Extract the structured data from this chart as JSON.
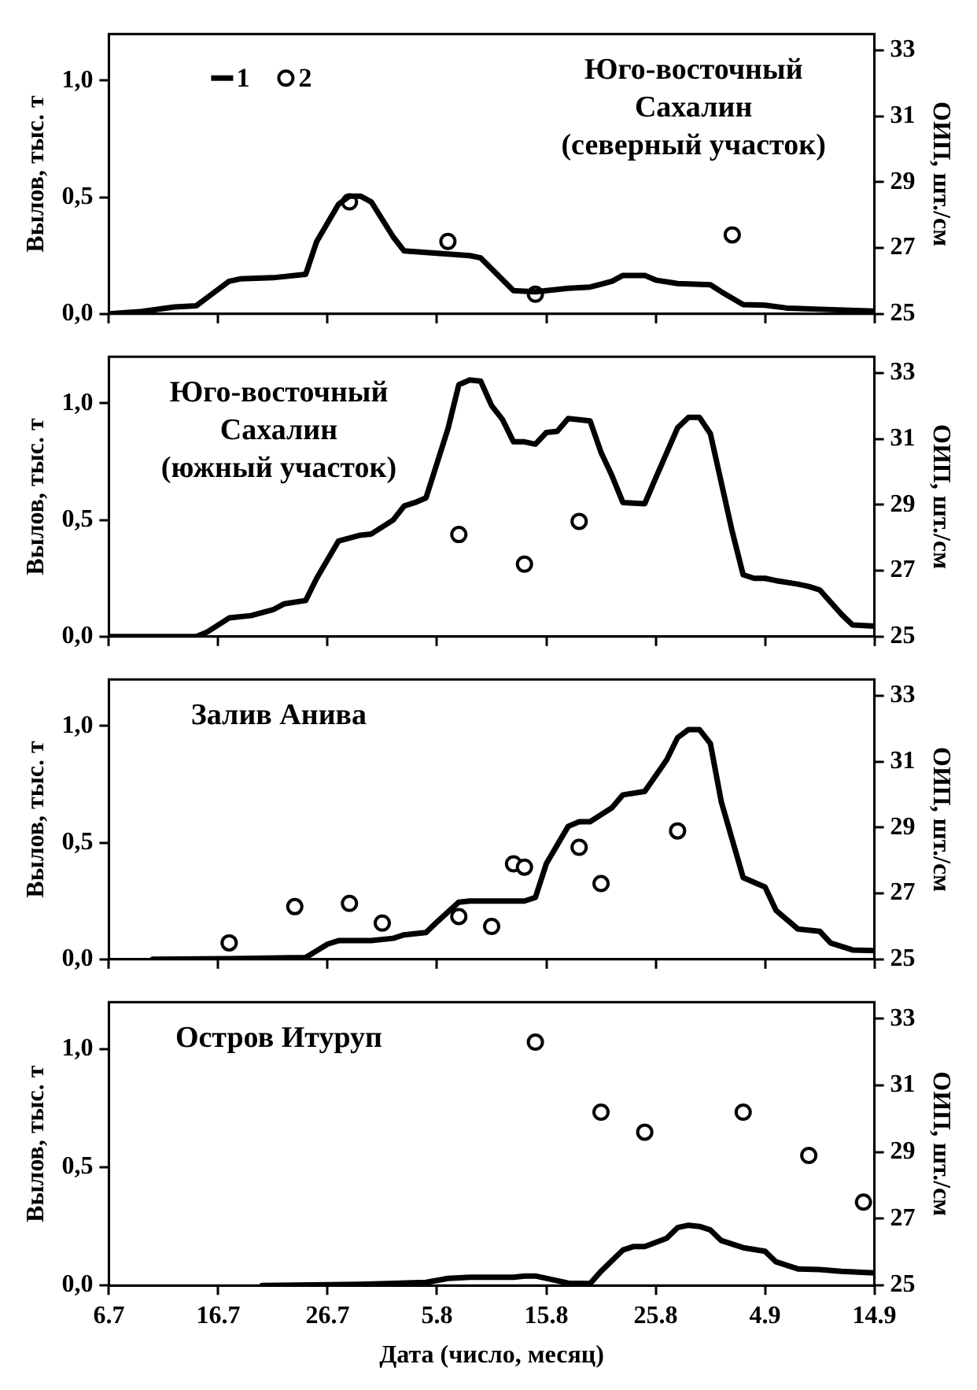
{
  "chart_data": [
    {
      "type": "line",
      "annotations": [
        "Юго-восточный Сахалин (северный участок)"
      ],
      "ylabel": "Вылов, тыс. т",
      "y2label": "ОИП, шт./см",
      "legend": "top left",
      "tick_labels": "y",
      "xlim": [
        "--07-06",
        "--09-14"
      ],
      "xticks": [
        {
          "value": "--07-06",
          "label": "6.7"
        },
        {
          "value": "--07-16",
          "label": "16.7"
        },
        {
          "value": "--07-26",
          "label": "26.7"
        },
        {
          "value": "--08-05",
          "label": "5.8"
        },
        {
          "value": "--08-15",
          "label": "15.8"
        },
        {
          "value": "--08-25",
          "label": "25.8"
        },
        {
          "value": "--09-04",
          "label": "4.9"
        },
        {
          "value": "--09-14",
          "label": "14.9"
        }
      ],
      "ylim": [
        0,
        1.2
      ],
      "yticks": [
        {
          "value": 0,
          "label": "0,0"
        },
        {
          "value": 0.5,
          "label": "0,5"
        },
        {
          "value": 1,
          "label": "1,0"
        }
      ],
      "y2lim": [
        25,
        33.5
      ],
      "y2ticks": [
        25,
        27,
        29,
        31,
        33
      ],
      "series": [
        {
          "name": "1",
          "color": "#000000",
          "line_style": "solid",
          "marker": "none",
          "x": [
            "--07-06",
            "--07-09",
            "--07-12",
            "--07-14",
            "--07-15",
            "--07-17",
            "--07-18",
            "--07-21",
            "--07-24",
            "--07-25",
            "--07-27",
            "--07-28",
            "--07-29",
            "--07-30",
            "--08-01",
            "--08-02",
            "--08-05",
            "--08-08",
            "--08-09",
            "--08-12",
            "--08-14",
            "--08-17",
            "--08-19",
            "--08-21",
            "--08-22",
            "--08-24",
            "--08-25",
            "--08-27",
            "--08-30",
            "--08-31",
            "--09-02",
            "--09-04",
            "--09-06",
            "--09-09",
            "--09-14"
          ],
          "values": [
            0,
            0.01,
            0.03,
            0.035,
            0.07,
            0.14,
            0.15,
            0.155,
            0.17,
            0.31,
            0.47,
            0.505,
            0.505,
            0.48,
            0.33,
            0.27,
            0.26,
            0.25,
            0.24,
            0.1,
            0.095,
            0.11,
            0.115,
            0.14,
            0.165,
            0.165,
            0.145,
            0.13,
            0.125,
            0.095,
            0.04,
            0.037,
            0.025,
            0.02,
            0.012
          ]
        },
        {
          "name": "2",
          "type": "scatter",
          "axis": "y2",
          "color": "#000000",
          "marker": "circle",
          "x": [
            "--07-28",
            "--08-06",
            "--08-14",
            "--09-01"
          ],
          "values": [
            28.4,
            27.2,
            25.6,
            27.4
          ]
        }
      ]
    },
    {
      "type": "line",
      "annotations": [
        "Юго-восточный Сахалин (южный участок)"
      ],
      "ylabel": "Вылов, тыс. т",
      "y2label": "ОИП, шт./см",
      "tick_labels": "y",
      "xlim": [
        "--07-06",
        "--09-14"
      ],
      "xticks": [
        {
          "value": "--07-06",
          "label": "6.7"
        },
        {
          "value": "--07-16",
          "label": "16.7"
        },
        {
          "value": "--07-26",
          "label": "26.7"
        },
        {
          "value": "--08-05",
          "label": "5.8"
        },
        {
          "value": "--08-15",
          "label": "15.8"
        },
        {
          "value": "--08-25",
          "label": "25.8"
        },
        {
          "value": "--09-04",
          "label": "4.9"
        },
        {
          "value": "--09-14",
          "label": "14.9"
        }
      ],
      "ylim": [
        0,
        1.2
      ],
      "yticks": [
        {
          "value": 0,
          "label": "0,0"
        },
        {
          "value": 0.5,
          "label": "0,5"
        },
        {
          "value": 1,
          "label": "1,0"
        }
      ],
      "y2lim": [
        25,
        33.5
      ],
      "y2ticks": [
        25,
        27,
        29,
        31,
        33
      ],
      "series": [
        {
          "color": "#000000",
          "line_style": "solid",
          "marker": "none",
          "x": [
            "--07-06",
            "--07-14",
            "--07-15",
            "--07-17",
            "--07-19",
            "--07-21",
            "--07-22",
            "--07-24",
            "--07-25",
            "--07-27",
            "--07-29",
            "--07-30",
            "--08-01",
            "--08-02",
            "--08-03",
            "--08-04",
            "--08-06",
            "--08-07",
            "--08-08",
            "--08-09",
            "--08-10",
            "--08-11",
            "--08-12",
            "--08-13",
            "--08-14",
            "--08-15",
            "--08-16",
            "--08-17",
            "--08-19",
            "--08-20",
            "--08-21",
            "--08-22",
            "--08-24",
            "--08-25",
            "--08-27",
            "--08-28",
            "--08-29",
            "--08-30",
            "--09-01",
            "--09-02",
            "--09-03",
            "--09-04",
            "--09-05",
            "--09-07",
            "--09-08",
            "--09-09",
            "--09-11",
            "--09-12",
            "--09-14"
          ],
          "values": [
            0,
            0,
            0.02,
            0.08,
            0.09,
            0.115,
            0.14,
            0.155,
            0.25,
            0.41,
            0.435,
            0.44,
            0.5,
            0.56,
            0.575,
            0.595,
            0.89,
            1.08,
            1.1,
            1.095,
            0.99,
            0.93,
            0.835,
            0.835,
            0.825,
            0.875,
            0.88,
            0.935,
            0.925,
            0.79,
            0.69,
            0.575,
            0.57,
            0.68,
            0.895,
            0.94,
            0.94,
            0.87,
            0.45,
            0.265,
            0.25,
            0.25,
            0.24,
            0.225,
            0.215,
            0.2,
            0.095,
            0.05,
            0.045
          ]
        },
        {
          "type": "scatter",
          "axis": "y2",
          "color": "#000000",
          "marker": "circle",
          "x": [
            "--08-07",
            "--08-13",
            "--08-18"
          ],
          "values": [
            28.1,
            27.2,
            28.5
          ]
        }
      ]
    },
    {
      "type": "line",
      "annotations": [
        "Залив Анива"
      ],
      "ylabel": "Вылов, тыс. т",
      "y2label": "ОИП, шт./см",
      "tick_labels": "y",
      "xlim": [
        "--07-06",
        "--09-14"
      ],
      "xticks": [
        {
          "value": "--07-06",
          "label": "6.7"
        },
        {
          "value": "--07-16",
          "label": "16.7"
        },
        {
          "value": "--07-26",
          "label": "26.7"
        },
        {
          "value": "--08-05",
          "label": "5.8"
        },
        {
          "value": "--08-15",
          "label": "15.8"
        },
        {
          "value": "--08-25",
          "label": "25.8"
        },
        {
          "value": "--09-04",
          "label": "4.9"
        },
        {
          "value": "--09-14",
          "label": "14.9"
        }
      ],
      "ylim": [
        0,
        1.2
      ],
      "yticks": [
        {
          "value": 0,
          "label": "0,0"
        },
        {
          "value": 0.5,
          "label": "0,5"
        },
        {
          "value": 1,
          "label": "1,0"
        }
      ],
      "y2lim": [
        25,
        33.5
      ],
      "y2ticks": [
        25,
        27,
        29,
        31,
        33
      ],
      "series": [
        {
          "color": "#000000",
          "line_style": "solid",
          "marker": "none",
          "x": [
            "--07-10",
            "--07-17",
            "--07-24",
            "--07-26",
            "--07-27",
            "--07-30",
            "--08-01",
            "--08-02",
            "--08-04",
            "--08-05",
            "--08-07",
            "--08-08",
            "--08-10",
            "--08-13",
            "--08-14",
            "--08-15",
            "--08-17",
            "--08-18",
            "--08-19",
            "--08-21",
            "--08-22",
            "--08-24",
            "--08-26",
            "--08-27",
            "--08-28",
            "--08-29",
            "--08-30",
            "--08-31",
            "--09-02",
            "--09-04",
            "--09-05",
            "--09-07",
            "--09-09",
            "--09-10",
            "--09-12",
            "--09-14"
          ],
          "values": [
            0,
            0.003,
            0.008,
            0.065,
            0.08,
            0.08,
            0.09,
            0.105,
            0.115,
            0.16,
            0.245,
            0.25,
            0.25,
            0.25,
            0.265,
            0.41,
            0.57,
            0.59,
            0.59,
            0.65,
            0.705,
            0.72,
            0.855,
            0.95,
            0.985,
            0.985,
            0.925,
            0.675,
            0.35,
            0.31,
            0.21,
            0.13,
            0.12,
            0.07,
            0.04,
            0.037
          ]
        },
        {
          "type": "scatter",
          "axis": "y2",
          "color": "#000000",
          "marker": "circle",
          "x": [
            "--07-17",
            "--07-23",
            "--07-28",
            "--07-31",
            "--08-07",
            "--08-10",
            "--08-12",
            "--08-13",
            "--08-18",
            "--08-20",
            "--08-27"
          ],
          "values": [
            25.5,
            26.6,
            26.7,
            26.1,
            26.3,
            26.0,
            27.9,
            27.8,
            28.4,
            27.3,
            28.9
          ]
        }
      ]
    },
    {
      "type": "line",
      "annotations": [
        "Остров Итуруп"
      ],
      "xlabel": "Дата (число, месяц)",
      "ylabel": "Вылов, тыс. т",
      "y2label": "ОИП, шт./см",
      "xlim": [
        "--07-06",
        "--09-14"
      ],
      "xticks": [
        {
          "value": "--07-06",
          "label": "6.7"
        },
        {
          "value": "--07-16",
          "label": "16.7"
        },
        {
          "value": "--07-26",
          "label": "26.7"
        },
        {
          "value": "--08-05",
          "label": "5.8"
        },
        {
          "value": "--08-15",
          "label": "15.8"
        },
        {
          "value": "--08-25",
          "label": "25.8"
        },
        {
          "value": "--09-04",
          "label": "4.9"
        },
        {
          "value": "--09-14",
          "label": "14.9"
        }
      ],
      "ylim": [
        0,
        1.2
      ],
      "yticks": [
        {
          "value": 0,
          "label": "0,0"
        },
        {
          "value": 0.5,
          "label": "0,5"
        },
        {
          "value": 1,
          "label": "1,0"
        }
      ],
      "y2lim": [
        25,
        33.5
      ],
      "y2ticks": [
        25,
        27,
        29,
        31,
        33
      ],
      "series": [
        {
          "color": "#000000",
          "line_style": "solid",
          "marker": "none",
          "x": [
            "--07-20",
            "--07-29",
            "--08-04",
            "--08-06",
            "--08-08",
            "--08-12",
            "--08-13",
            "--08-14",
            "--08-17",
            "--08-19",
            "--08-20",
            "--08-22",
            "--08-23",
            "--08-24",
            "--08-26",
            "--08-27",
            "--08-28",
            "--08-29",
            "--08-30",
            "--08-31",
            "--09-02",
            "--09-04",
            "--09-05",
            "--09-07",
            "--09-09",
            "--09-11",
            "--09-14"
          ],
          "values": [
            0,
            0.005,
            0.013,
            0.03,
            0.035,
            0.035,
            0.04,
            0.04,
            0.01,
            0.008,
            0.06,
            0.15,
            0.165,
            0.165,
            0.2,
            0.245,
            0.255,
            0.25,
            0.235,
            0.19,
            0.16,
            0.145,
            0.1,
            0.07,
            0.067,
            0.06,
            0.053
          ]
        },
        {
          "type": "scatter",
          "axis": "y2",
          "color": "#000000",
          "marker": "circle",
          "x": [
            "--08-14",
            "--08-20",
            "--08-24",
            "--09-02",
            "--09-08",
            "--09-13"
          ],
          "values": [
            32.3,
            30.2,
            29.6,
            30.2,
            28.9,
            27.5
          ]
        }
      ]
    }
  ]
}
